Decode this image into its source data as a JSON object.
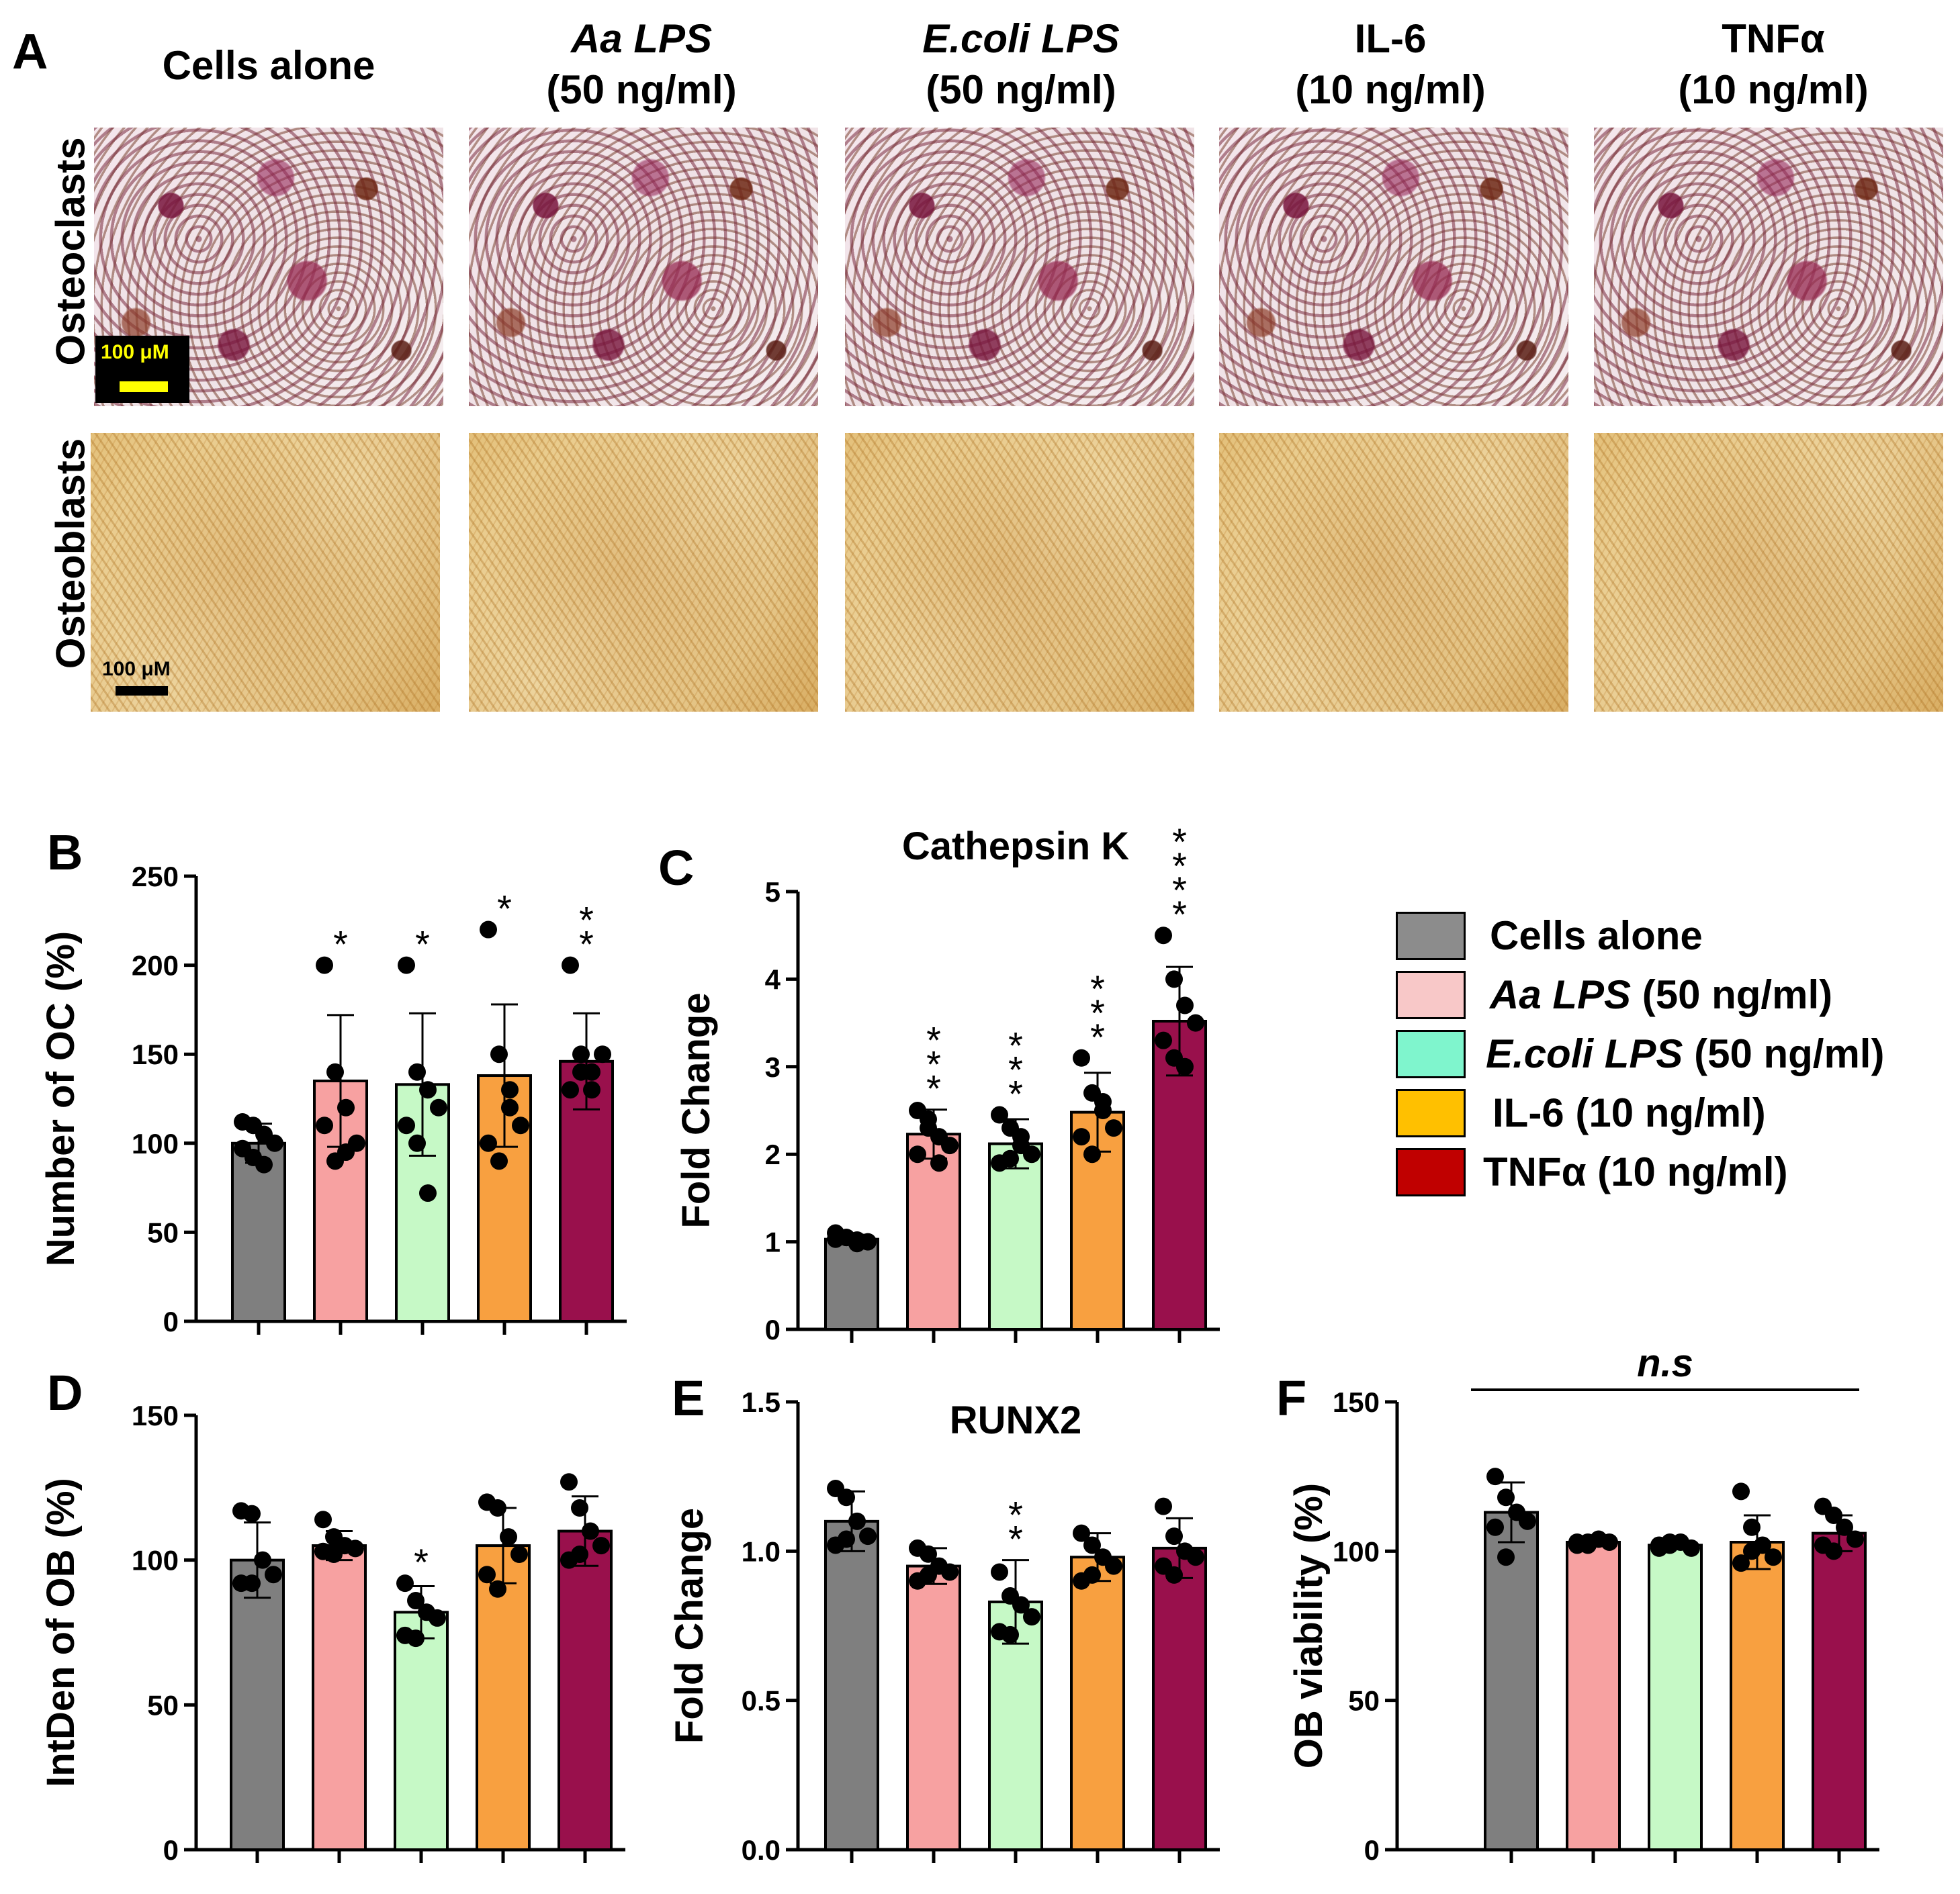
{
  "panel_a": {
    "letter": "A",
    "columns": [
      {
        "line1": "Cells alone",
        "line2": "",
        "italic": false
      },
      {
        "line1": "Aa LPS",
        "line2": "(50 ng/ml)",
        "italic": true
      },
      {
        "line1": "E.coli LPS",
        "line2": "(50 ng/ml)",
        "italic": true
      },
      {
        "line1": "IL-6",
        "line2": "(10 ng/ml)",
        "italic": false
      },
      {
        "line1": "TNFα",
        "line2": "(10 ng/ml)",
        "italic": false
      }
    ],
    "rows": [
      "Osteoclasts",
      "Osteoblasts"
    ],
    "scalebar_osteoclast": "100 μM",
    "scalebar_osteoblast": "100 μM",
    "scalebar_osteoclast_color": "#ffff00"
  },
  "legend": {
    "items": [
      {
        "italic": "",
        "text": "Cells alone",
        "color": "#8c8c8c"
      },
      {
        "italic": "Aa LPS",
        "text": " (50 ng/ml)",
        "color": "#f8c8c8"
      },
      {
        "italic": "E.coli LPS",
        "text": " (50 ng/ml)",
        "color": "#7ff5cd"
      },
      {
        "italic": "",
        "text": "IL-6 (10 ng/ml)",
        "color": "#ffc000"
      },
      {
        "italic": "",
        "text": "TNFα (10 ng/ml)",
        "color": "#c00000"
      }
    ]
  },
  "bar_colors": [
    "#7f7f7f",
    "#f7a1a1",
    "#c6f9c6",
    "#f8a040",
    "#99104c"
  ],
  "chart_data": [
    {
      "panel": "B",
      "type": "bar",
      "title": "",
      "xlabel": "",
      "ylabel": "Number of  OC (%)",
      "ylim": [
        0,
        250
      ],
      "yticks": [
        "0",
        "50",
        "100",
        "150",
        "200",
        "250"
      ],
      "means": [
        100,
        135,
        133,
        138,
        146
      ],
      "sd": [
        11,
        37,
        40,
        40,
        27
      ],
      "points": [
        [
          112,
          110,
          105,
          100,
          97,
          92,
          88
        ],
        [
          200,
          140,
          120,
          100,
          110,
          90,
          95
        ],
        [
          200,
          140,
          130,
          120,
          110,
          100,
          72
        ],
        [
          220,
          150,
          130,
          110,
          100,
          90,
          120
        ],
        [
          200,
          150,
          140,
          150,
          130,
          140,
          130
        ]
      ],
      "significance": [
        "",
        "*",
        "*",
        "*",
        "**"
      ]
    },
    {
      "panel": "C",
      "type": "bar",
      "title": "Cathepsin K",
      "xlabel": "",
      "ylabel": "Fold Change",
      "ylim": [
        0,
        5
      ],
      "yticks": [
        "0",
        "1",
        "2",
        "3",
        "4",
        "5"
      ],
      "means": [
        1.03,
        2.23,
        2.12,
        2.48,
        3.52
      ],
      "sd": [
        0.05,
        0.28,
        0.28,
        0.45,
        0.62
      ],
      "points": [
        [
          1.1,
          1.05,
          1.02,
          1.0,
          1.03,
          1.05,
          0.98
        ],
        [
          2.5,
          2.4,
          2.2,
          2.1,
          2.0,
          2.3,
          1.9
        ],
        [
          2.45,
          2.3,
          2.2,
          2.0,
          1.9,
          1.95,
          2.1
        ],
        [
          3.1,
          2.7,
          2.5,
          2.3,
          2.2,
          2.0,
          2.6
        ],
        [
          4.5,
          4.0,
          3.7,
          3.5,
          3.3,
          3.1,
          3.0
        ]
      ],
      "significance": [
        "",
        "***",
        "***",
        "***",
        "****"
      ]
    },
    {
      "panel": "D",
      "type": "bar",
      "title": "",
      "xlabel": "",
      "ylabel": "IntDen of OB (%)",
      "ylim": [
        0,
        150
      ],
      "yticks": [
        "0",
        "50",
        "100",
        "150"
      ],
      "means": [
        100,
        105,
        82,
        105,
        110
      ],
      "sd": [
        13,
        5,
        9,
        13,
        12
      ],
      "points": [
        [
          117,
          116,
          100,
          95,
          92,
          92
        ],
        [
          114,
          108,
          105,
          104,
          103,
          102
        ],
        [
          92,
          86,
          82,
          80,
          74,
          73
        ],
        [
          120,
          118,
          108,
          102,
          95,
          90
        ],
        [
          127,
          118,
          110,
          105,
          100,
          102
        ]
      ],
      "significance": [
        "",
        "",
        "*",
        "",
        ""
      ]
    },
    {
      "panel": "E",
      "type": "bar",
      "title": "RUNX2",
      "xlabel": "",
      "ylabel": "Fold Change",
      "ylim": [
        0,
        1.5
      ],
      "yticks": [
        "0.0",
        "0.5",
        "1.0",
        "1.5"
      ],
      "means": [
        1.1,
        0.95,
        0.83,
        0.98,
        1.01
      ],
      "sd": [
        0.1,
        0.06,
        0.14,
        0.08,
        0.1
      ],
      "points": [
        [
          1.21,
          1.18,
          1.1,
          1.05,
          1.02,
          1.04
        ],
        [
          1.01,
          0.99,
          0.95,
          0.93,
          0.9,
          0.92
        ],
        [
          0.93,
          0.85,
          0.82,
          0.78,
          0.73,
          0.72
        ],
        [
          1.06,
          1.02,
          0.98,
          0.95,
          0.9,
          0.92
        ],
        [
          1.15,
          1.05,
          1.0,
          0.98,
          0.95,
          0.92
        ]
      ],
      "significance": [
        "",
        "",
        "**",
        "",
        ""
      ]
    },
    {
      "panel": "F",
      "type": "bar",
      "title": "",
      "xlabel": "",
      "ylabel": "OB viability (%)",
      "ylim": [
        0,
        150
      ],
      "yticks": [
        "0",
        "50",
        "100",
        "150"
      ],
      "means": [
        113,
        103,
        102,
        103,
        106
      ],
      "sd": [
        10,
        1,
        1,
        9,
        6
      ],
      "points": [
        [
          125,
          118,
          113,
          110,
          108,
          98
        ],
        [
          103,
          102,
          104,
          103,
          102,
          103
        ],
        [
          101,
          102,
          103,
          101,
          102,
          103
        ],
        [
          120,
          108,
          102,
          98,
          96,
          100
        ],
        [
          115,
          112,
          108,
          104,
          102,
          100
        ]
      ],
      "significance": [
        "",
        "",
        "",
        "",
        ""
      ],
      "bracket_label": "n.s"
    }
  ]
}
